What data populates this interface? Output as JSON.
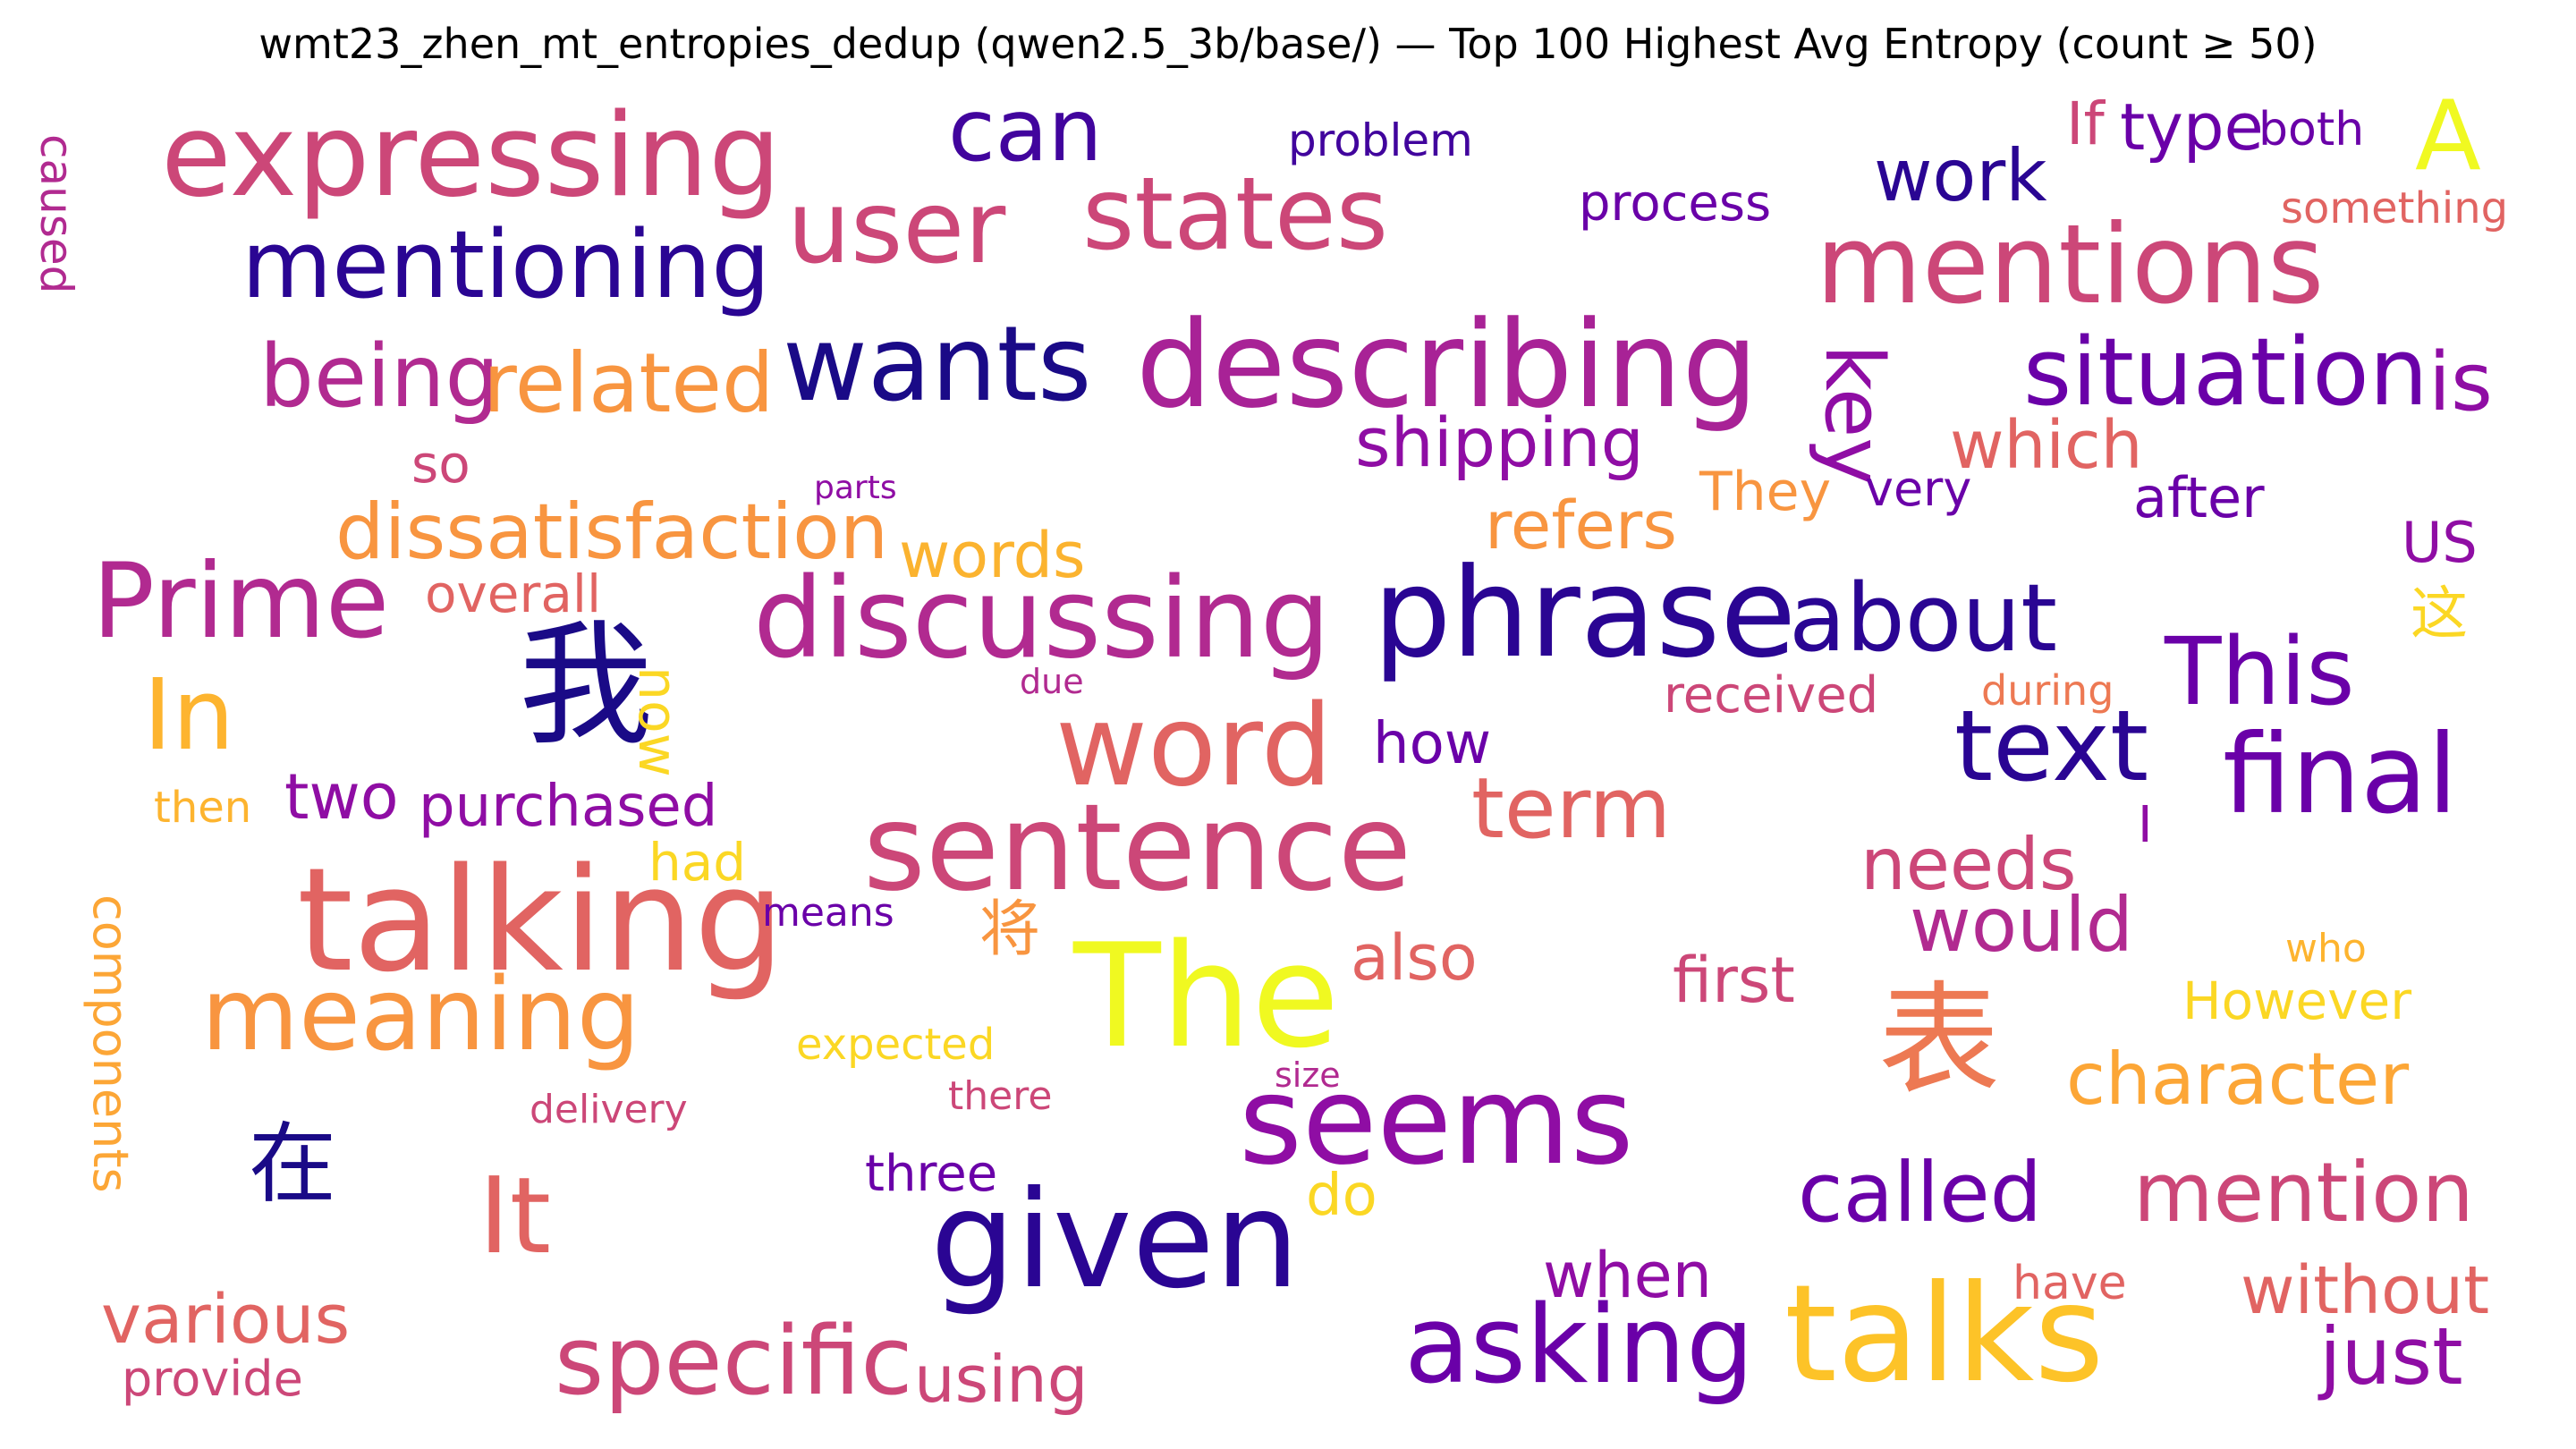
{
  "chart_data": {
    "type": "wordcloud",
    "title": "wmt23_zhen_mt_entropies_dedup (qwen2.5_3b/base/) — Top 100 Highest Avg Entropy (count ≥ 50)",
    "colormap": "plasma",
    "words": [
      {
        "text": "expressing",
        "color": "#cc4778"
      },
      {
        "text": "can",
        "color": "#41049d"
      },
      {
        "text": "problem",
        "color": "#41049d"
      },
      {
        "text": "If",
        "color": "#cc4778"
      },
      {
        "text": "type",
        "color": "#6a00a8"
      },
      {
        "text": "both",
        "color": "#6a00a8"
      },
      {
        "text": "A",
        "color": "#f0f921"
      },
      {
        "text": "caused",
        "color": "#b12a90"
      },
      {
        "text": "user",
        "color": "#cc4778"
      },
      {
        "text": "states",
        "color": "#cc4778"
      },
      {
        "text": "process",
        "color": "#6a00a8"
      },
      {
        "text": "work",
        "color": "#2a0593"
      },
      {
        "text": "something",
        "color": "#e16462"
      },
      {
        "text": "mentioning",
        "color": "#2a0593"
      },
      {
        "text": "mentions",
        "color": "#cc4778"
      },
      {
        "text": "being",
        "color": "#b12a90"
      },
      {
        "text": "related",
        "color": "#f89540"
      },
      {
        "text": "wants",
        "color": "#1a0a87"
      },
      {
        "text": "describing",
        "color": "#a82296"
      },
      {
        "text": "key",
        "color": "#8f0da4"
      },
      {
        "text": "situation",
        "color": "#6a00a8"
      },
      {
        "text": "is",
        "color": "#8f0da4"
      },
      {
        "text": "shipping",
        "color": "#8f0da4"
      },
      {
        "text": "which",
        "color": "#e16462"
      },
      {
        "text": "so",
        "color": "#cc4778"
      },
      {
        "text": "parts",
        "color": "#8f0da4"
      },
      {
        "text": "They",
        "color": "#f89540"
      },
      {
        "text": "very",
        "color": "#6a00a8"
      },
      {
        "text": "after",
        "color": "#6a00a8"
      },
      {
        "text": "dissatisfaction",
        "color": "#f89540"
      },
      {
        "text": "refers",
        "color": "#f89540"
      },
      {
        "text": "US",
        "color": "#8f0da4"
      },
      {
        "text": "words",
        "color": "#fbb32f"
      },
      {
        "text": "Prime",
        "color": "#b12a90"
      },
      {
        "text": "overall",
        "color": "#e16462"
      },
      {
        "text": "discussing",
        "color": "#b12a90"
      },
      {
        "text": "phrase",
        "color": "#2a0593"
      },
      {
        "text": "about",
        "color": "#2a0593"
      },
      {
        "text": "这",
        "color": "#fbd724"
      },
      {
        "text": "我",
        "color": "#1a0a87"
      },
      {
        "text": "now",
        "color": "#fbd724"
      },
      {
        "text": "This",
        "color": "#6a00a8"
      },
      {
        "text": "In",
        "color": "#fdb42f"
      },
      {
        "text": "due",
        "color": "#b12a90"
      },
      {
        "text": "received",
        "color": "#cc4778"
      },
      {
        "text": "during",
        "color": "#ed7953"
      },
      {
        "text": "word",
        "color": "#e16462"
      },
      {
        "text": "how",
        "color": "#6a00a8"
      },
      {
        "text": "text",
        "color": "#2a0593"
      },
      {
        "text": "final",
        "color": "#6a00a8"
      },
      {
        "text": "two",
        "color": "#8f0da4"
      },
      {
        "text": "purchased",
        "color": "#8f0da4"
      },
      {
        "text": "then",
        "color": "#fdb42f"
      },
      {
        "text": "term",
        "color": "#e16462"
      },
      {
        "text": "I",
        "color": "#8f0da4"
      },
      {
        "text": "sentence",
        "color": "#cc4778"
      },
      {
        "text": "needs",
        "color": "#cc4778"
      },
      {
        "text": "had",
        "color": "#fbd724"
      },
      {
        "text": "talking",
        "color": "#e16462"
      },
      {
        "text": "means",
        "color": "#6a00a8"
      },
      {
        "text": "将",
        "color": "#f89540"
      },
      {
        "text": "would",
        "color": "#b12a90"
      },
      {
        "text": "who",
        "color": "#fdb42f"
      },
      {
        "text": "components",
        "color": "#fca636"
      },
      {
        "text": "also",
        "color": "#e16462"
      },
      {
        "text": "The",
        "color": "#f0f921"
      },
      {
        "text": "first",
        "color": "#cc4778"
      },
      {
        "text": "However",
        "color": "#fbd724"
      },
      {
        "text": "meaning",
        "color": "#f89540"
      },
      {
        "text": "表",
        "color": "#ed7953"
      },
      {
        "text": "expected",
        "color": "#fbd724"
      },
      {
        "text": "character",
        "color": "#fca636"
      },
      {
        "text": "delivery",
        "color": "#cc4778"
      },
      {
        "text": "there",
        "color": "#cc4778"
      },
      {
        "text": "size",
        "color": "#b12a90"
      },
      {
        "text": "seems",
        "color": "#8f0da4"
      },
      {
        "text": "在",
        "color": "#1a0a87"
      },
      {
        "text": "three",
        "color": "#6a00a8"
      },
      {
        "text": "do",
        "color": "#fbd724"
      },
      {
        "text": "called",
        "color": "#6a00a8"
      },
      {
        "text": "mention",
        "color": "#cc4778"
      },
      {
        "text": "It",
        "color": "#e16462"
      },
      {
        "text": "given",
        "color": "#2a0593"
      },
      {
        "text": "when",
        "color": "#8f0da4"
      },
      {
        "text": "have",
        "color": "#e16462"
      },
      {
        "text": "without",
        "color": "#e16462"
      },
      {
        "text": "various",
        "color": "#e16462"
      },
      {
        "text": "talks",
        "color": "#fdc328"
      },
      {
        "text": "asking",
        "color": "#6a00a8"
      },
      {
        "text": "provide",
        "color": "#cc4778"
      },
      {
        "text": "specific",
        "color": "#cc4778"
      },
      {
        "text": "using",
        "color": "#cc4778"
      },
      {
        "text": "just",
        "color": "#8f0da4"
      }
    ]
  }
}
